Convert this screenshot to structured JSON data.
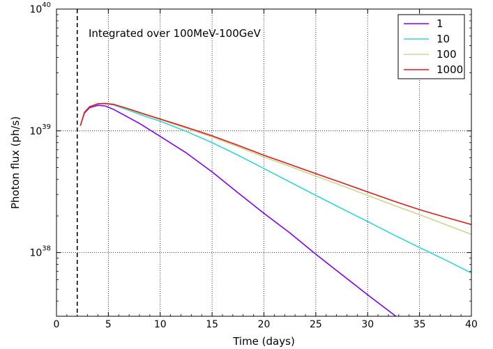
{
  "chart_data": {
    "type": "line",
    "title": "",
    "xlabel": "Time (days)",
    "ylabel": "Photon flux (ph/s)",
    "xlim": [
      0,
      40
    ],
    "ylim": [
      3e+37,
      1e+40
    ],
    "yscale": "log",
    "x_ticks": [
      "0",
      "5",
      "10",
      "15",
      "20",
      "25",
      "30",
      "35",
      "40"
    ],
    "y_ticks": [
      {
        "base": "10",
        "exp": "38",
        "value": 1e+38
      },
      {
        "base": "10",
        "exp": "39",
        "value": 1e+39
      },
      {
        "base": "10",
        "exp": "40",
        "value": 1e+40
      }
    ],
    "grid": true,
    "legend_position": "top-right",
    "annotation": "Integrated over 100MeV-100GeV",
    "vline": {
      "x": 2,
      "style": "dashed",
      "color": "#000000"
    },
    "series": [
      {
        "name": "1",
        "color": "#7f00ff",
        "points": [
          [
            2.3,
            1.1e+39
          ],
          [
            2.7,
            1.4e+39
          ],
          [
            3.2,
            1.55e+39
          ],
          [
            4.0,
            1.62e+39
          ],
          [
            4.7,
            1.6e+39
          ],
          [
            5.5,
            1.5e+39
          ],
          [
            6.5,
            1.35e+39
          ],
          [
            8,
            1.15e+39
          ],
          [
            10,
            9e+38
          ],
          [
            12.5,
            6.6e+38
          ],
          [
            15,
            4.6e+38
          ],
          [
            17.5,
            3.1e+38
          ],
          [
            20,
            2.1e+38
          ],
          [
            22.5,
            1.45e+38
          ],
          [
            25,
            9.7e+37
          ],
          [
            27.5,
            6.6e+37
          ],
          [
            30,
            4.5e+37
          ],
          [
            32.5,
            3.1e+37
          ],
          [
            35,
            2.1e+37
          ]
        ]
      },
      {
        "name": "10",
        "color": "#33d6d6",
        "points": [
          [
            2.3,
            1.1e+39
          ],
          [
            2.7,
            1.42e+39
          ],
          [
            3.2,
            1.58e+39
          ],
          [
            4.0,
            1.66e+39
          ],
          [
            4.7,
            1.67e+39
          ],
          [
            5.5,
            1.63e+39
          ],
          [
            7,
            1.47e+39
          ],
          [
            8.5,
            1.32e+39
          ],
          [
            10,
            1.2e+39
          ],
          [
            12.5,
            9.9e+38
          ],
          [
            15,
            8e+38
          ],
          [
            17.5,
            6.3e+38
          ],
          [
            20,
            4.9e+38
          ],
          [
            22.5,
            3.8e+38
          ],
          [
            25,
            2.95e+38
          ],
          [
            27.5,
            2.3e+38
          ],
          [
            30,
            1.8e+38
          ],
          [
            32.5,
            1.4e+38
          ],
          [
            35,
            1.1e+38
          ],
          [
            37.5,
            8.7e+37
          ],
          [
            40,
            6.8e+37
          ]
        ]
      },
      {
        "name": "100",
        "color": "#c8d890",
        "points": [
          [
            2.3,
            1.1e+39
          ],
          [
            2.7,
            1.42e+39
          ],
          [
            3.2,
            1.58e+39
          ],
          [
            4.0,
            1.67e+39
          ],
          [
            4.7,
            1.68e+39
          ],
          [
            5.5,
            1.65e+39
          ],
          [
            7,
            1.5e+39
          ],
          [
            8.5,
            1.36e+39
          ],
          [
            10,
            1.24e+39
          ],
          [
            12.5,
            1.05e+39
          ],
          [
            15,
            8.9e+38
          ],
          [
            17.5,
            7.4e+38
          ],
          [
            20,
            6.1e+38
          ],
          [
            22.5,
            5.1e+38
          ],
          [
            25,
            4.25e+38
          ],
          [
            27.5,
            3.55e+38
          ],
          [
            30,
            2.95e+38
          ],
          [
            32.5,
            2.45e+38
          ],
          [
            35,
            2.05e+38
          ],
          [
            37.5,
            1.7e+38
          ],
          [
            40,
            1.41e+38
          ]
        ]
      },
      {
        "name": "1000",
        "color": "#e31a1c",
        "points": [
          [
            2.3,
            1.1e+39
          ],
          [
            2.7,
            1.42e+39
          ],
          [
            3.2,
            1.58e+39
          ],
          [
            4.0,
            1.67e+39
          ],
          [
            4.7,
            1.68e+39
          ],
          [
            5.5,
            1.65e+39
          ],
          [
            7,
            1.51e+39
          ],
          [
            8.5,
            1.37e+39
          ],
          [
            10,
            1.25e+39
          ],
          [
            12.5,
            1.07e+39
          ],
          [
            15,
            9.1e+38
          ],
          [
            17.5,
            7.6e+38
          ],
          [
            20,
            6.3e+38
          ],
          [
            22.5,
            5.3e+38
          ],
          [
            25,
            4.45e+38
          ],
          [
            27.5,
            3.75e+38
          ],
          [
            30,
            3.15e+38
          ],
          [
            32.5,
            2.65e+38
          ],
          [
            35,
            2.25e+38
          ],
          [
            37.5,
            1.95e+38
          ],
          [
            40,
            1.7e+38
          ]
        ]
      }
    ]
  }
}
